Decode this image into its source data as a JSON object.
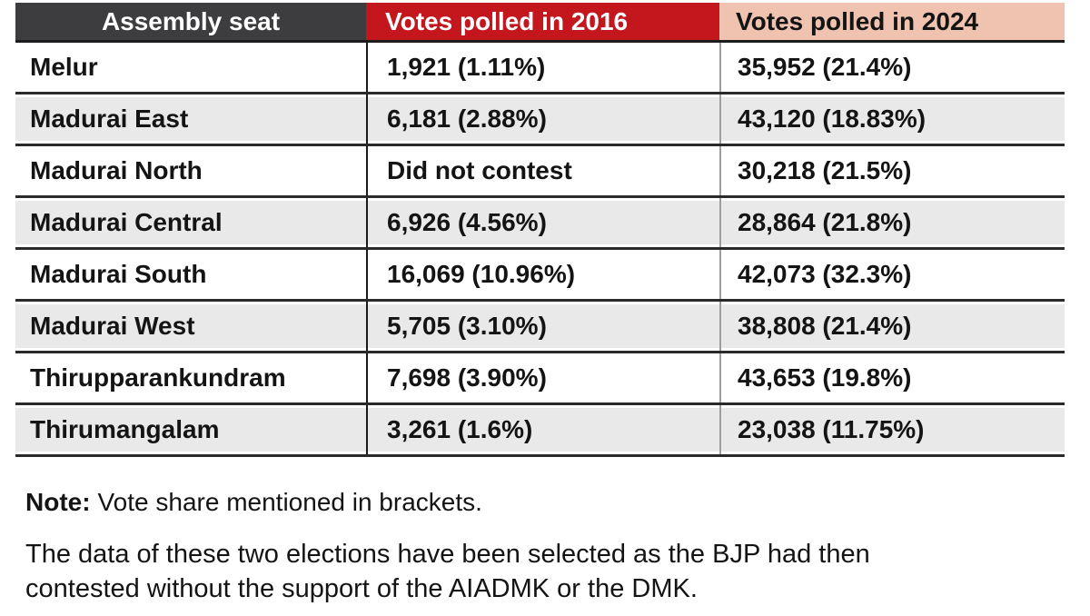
{
  "table": {
    "columns": [
      "Assembly seat",
      "Votes polled in 2016",
      "Votes polled in 2024"
    ],
    "rows": [
      {
        "seat": "Melur",
        "v2016": "1,921 (1.11%)",
        "v2024": "35,952 (21.4%)"
      },
      {
        "seat": "Madurai East",
        "v2016": "6,181 (2.88%)",
        "v2024": "43,120 (18.83%)"
      },
      {
        "seat": "Madurai North",
        "v2016": "Did not contest",
        "v2024": "30,218 (21.5%)"
      },
      {
        "seat": "Madurai Central",
        "v2016": "6,926 (4.56%)",
        "v2024": "28,864 (21.8%)"
      },
      {
        "seat": "Madurai South",
        "v2016": "16,069 (10.96%)",
        "v2024": "42,073 (32.3%)"
      },
      {
        "seat": "Madurai West",
        "v2016": "5,705 (3.10%)",
        "v2024": "38,808 (21.4%)"
      },
      {
        "seat": "Thirupparankundram",
        "v2016": "7,698 (3.90%)",
        "v2024": "43,653 (19.8%)"
      },
      {
        "seat": "Thirumangalam",
        "v2016": "3,261 (1.6%)",
        "v2024": "23,038 (11.75%)"
      }
    ]
  },
  "notes": {
    "note_label": "Note:",
    "note_text": "Vote share mentioned in brackets.",
    "paragraph": "The data of these two elections have been selected as the BJP had then contested without the support of the AIADMK or the DMK."
  },
  "colors": {
    "header_seat_bg": "#3d3d3f",
    "header_2016_bg": "#c3161d",
    "header_2024_bg": "#f0c2b0",
    "row_alt_bg": "#e9e9e9",
    "rule_dark": "#2a2a2a",
    "rule_mid": "#9e9e9e",
    "text": "#141414"
  },
  "chart_data": {
    "type": "table",
    "columns": [
      "Assembly seat",
      "Votes polled in 2016",
      "Votes polled in 2024"
    ],
    "rows": [
      [
        "Melur",
        "1,921 (1.11%)",
        "35,952 (21.4%)"
      ],
      [
        "Madurai East",
        "6,181 (2.88%)",
        "43,120 (18.83%)"
      ],
      [
        "Madurai North",
        "Did not contest",
        "30,218 (21.5%)"
      ],
      [
        "Madurai Central",
        "6,926 (4.56%)",
        "28,864 (21.8%)"
      ],
      [
        "Madurai South",
        "16,069 (10.96%)",
        "42,073 (32.3%)"
      ],
      [
        "Madurai West",
        "5,705 (3.10%)",
        "38,808 (21.4%)"
      ],
      [
        "Thirupparankundram",
        "7,698 (3.90%)",
        "43,653 (19.8%)"
      ],
      [
        "Thirumangalam",
        "3,261 (1.6%)",
        "23,038 (11.75%)"
      ]
    ],
    "numeric": {
      "seats": [
        "Melur",
        "Madurai East",
        "Madurai North",
        "Madurai Central",
        "Madurai South",
        "Madurai West",
        "Thirupparankundram",
        "Thirumangalam"
      ],
      "votes_2016": [
        1921,
        6181,
        null,
        6926,
        16069,
        5705,
        7698,
        3261
      ],
      "vote_share_2016_pct": [
        1.11,
        2.88,
        null,
        4.56,
        10.96,
        3.1,
        3.9,
        1.6
      ],
      "votes_2024": [
        35952,
        43120,
        30218,
        28864,
        42073,
        38808,
        43653,
        23038
      ],
      "vote_share_2024_pct": [
        21.4,
        18.83,
        21.5,
        21.8,
        32.3,
        21.4,
        19.8,
        11.75
      ]
    },
    "annotations": [
      "Note: Vote share mentioned in brackets.",
      "The data of these two elections have been selected as the BJP had then contested without the support of the AIADMK or the DMK."
    ]
  }
}
